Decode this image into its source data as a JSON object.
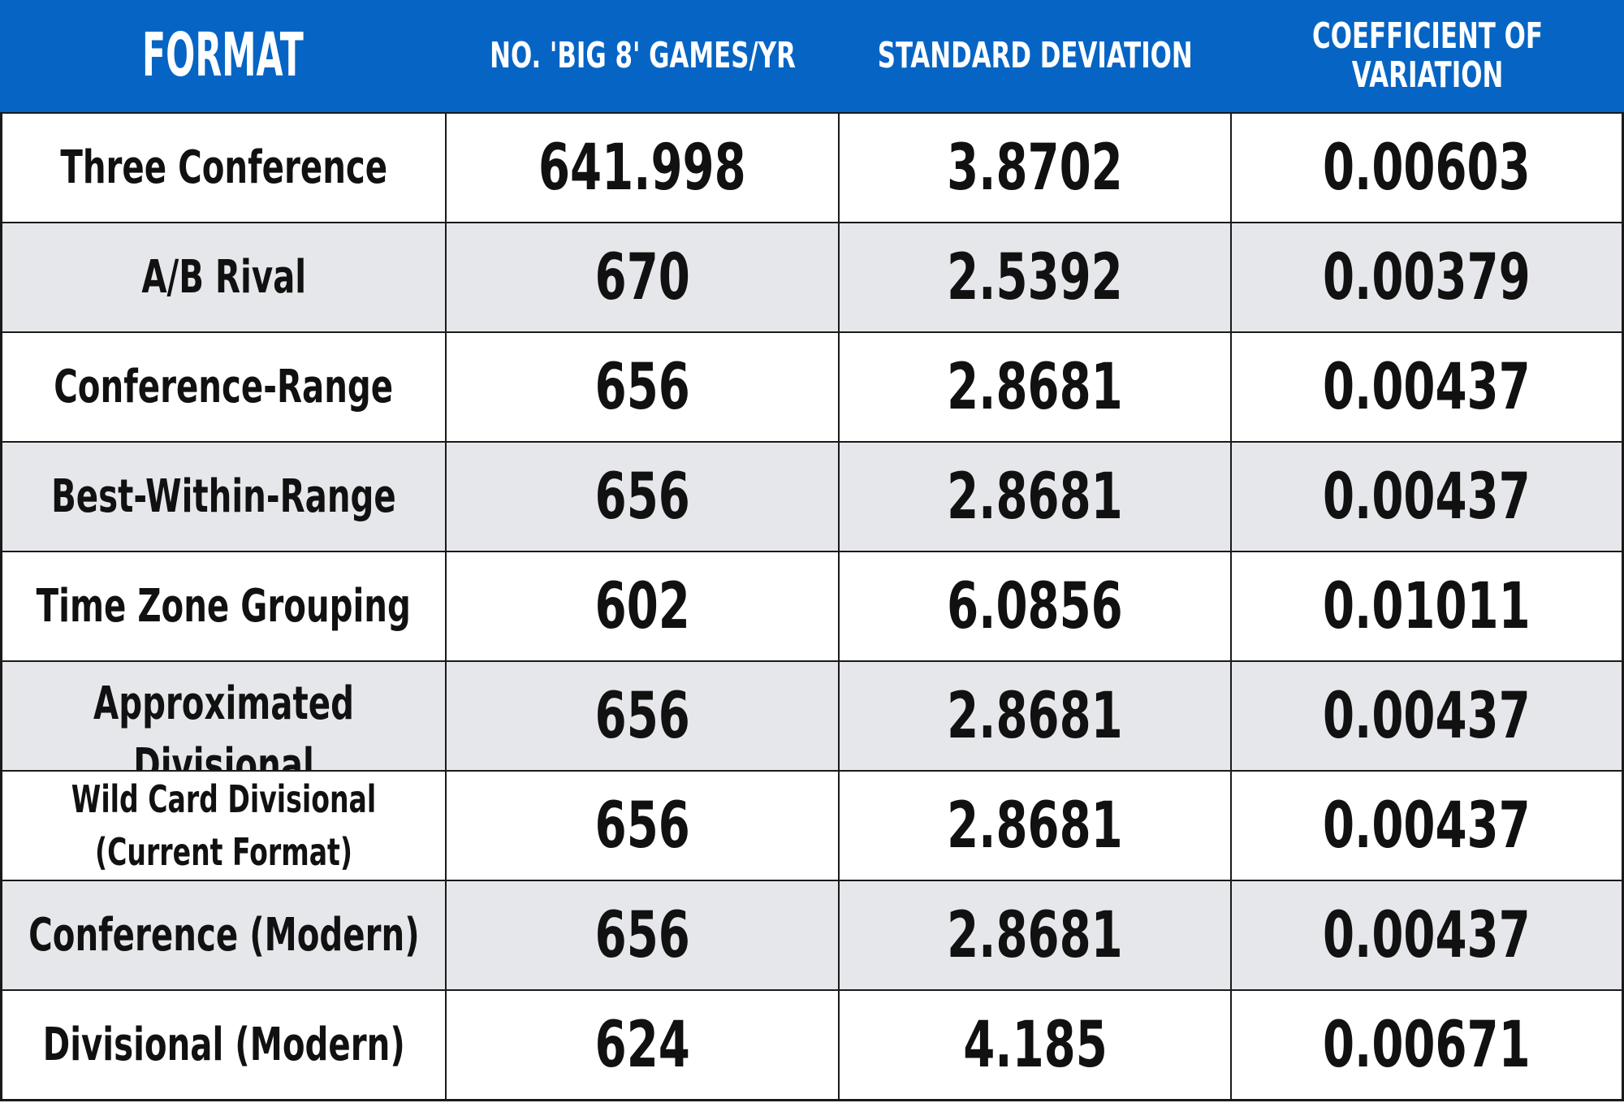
{
  "headers": {
    "format": "FORMAT",
    "games": "NO. 'BIG 8' GAMES/YR",
    "std_dev": "STANDARD DEVIATION",
    "coef": "COEFFICIENT OF VARIATION"
  },
  "rows": [
    {
      "format": "Three Conference",
      "games": "641.998",
      "std_dev": "3.8702",
      "coef": "0.00603"
    },
    {
      "format": "A/B Rival",
      "games": "670",
      "std_dev": "2.5392",
      "coef": "0.00379"
    },
    {
      "format": "Conference-Range",
      "games": "656",
      "std_dev": "2.8681",
      "coef": "0.00437"
    },
    {
      "format": "Best-Within-Range",
      "games": "656",
      "std_dev": "2.8681",
      "coef": "0.00437"
    },
    {
      "format": "Time Zone Grouping",
      "games": "602",
      "std_dev": "6.0856",
      "coef": "0.01011"
    },
    {
      "format": "Approximated Divisional",
      "games": "656",
      "std_dev": "2.8681",
      "coef": "0.00437"
    },
    {
      "format": "Wild Card Divisional (Current Format)",
      "games": "656",
      "std_dev": "2.8681",
      "coef": "0.00437"
    },
    {
      "format": "Conference (Modern)",
      "games": "656",
      "std_dev": "2.8681",
      "coef": "0.00437"
    },
    {
      "format": "Divisional (Modern)",
      "games": "624",
      "std_dev": "4.185",
      "coef": "0.00671"
    }
  ],
  "colors": {
    "header_bg": "#0665c4",
    "alt_row_bg": "#e6e7ea",
    "text": "#111111"
  }
}
